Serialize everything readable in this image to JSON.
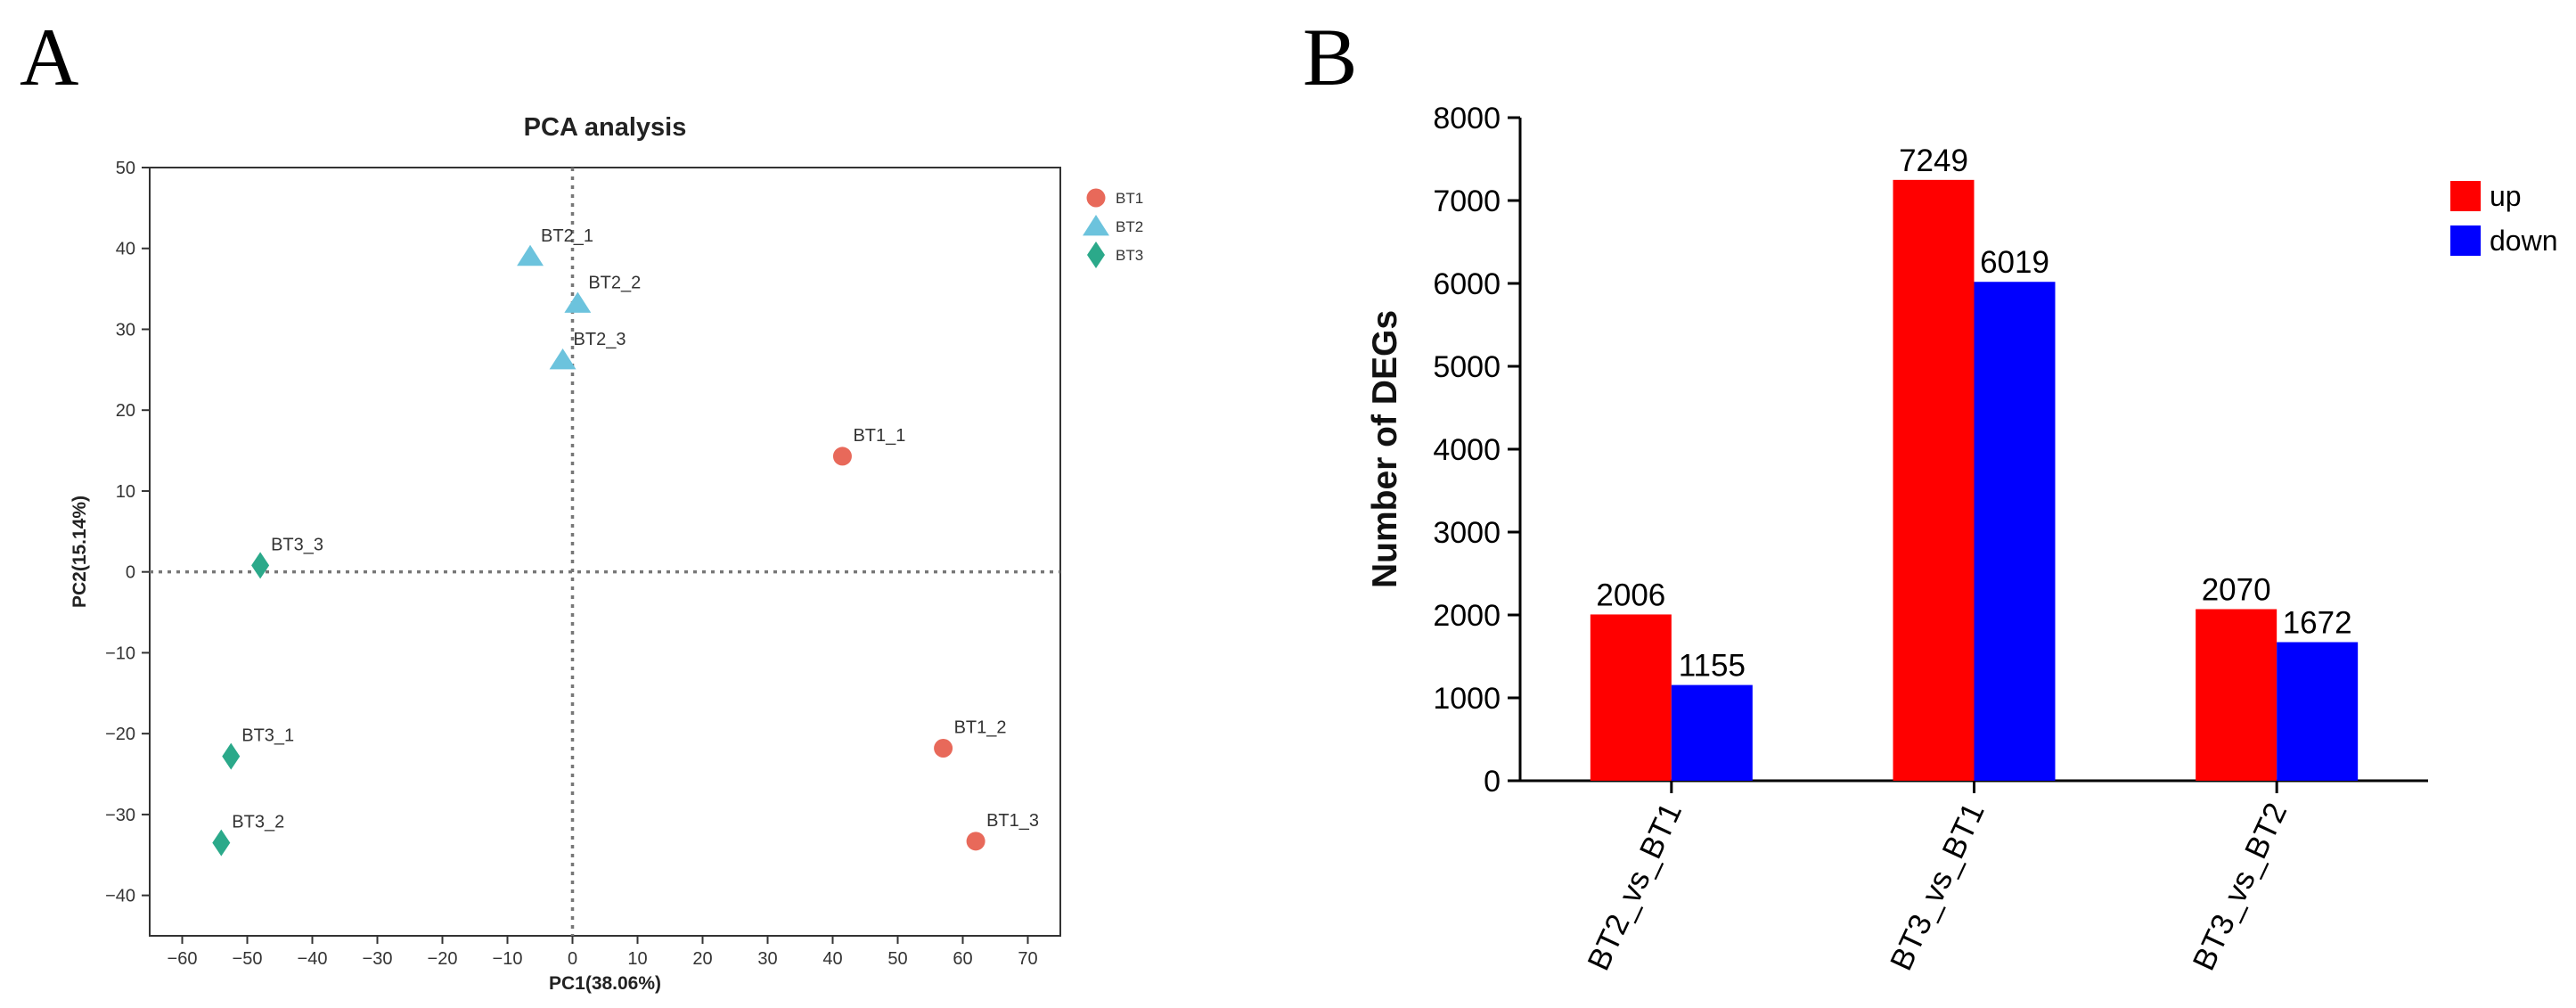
{
  "panel_labels": {
    "a": "A",
    "b": "B"
  },
  "chart_data": [
    {
      "type": "scatter",
      "title": "PCA analysis",
      "xlabel": "PC1(38.06%)",
      "ylabel": "PC2(15.14%)",
      "xlim": [
        -65,
        75
      ],
      "ylim": [
        -45,
        50
      ],
      "xticks": [
        -60,
        -50,
        -40,
        -30,
        -20,
        -10,
        0,
        10,
        20,
        30,
        40,
        50,
        60,
        70
      ],
      "xtick_labels": [
        "−60",
        "−50",
        "−40",
        "−30",
        "−20",
        "−10",
        "0",
        "10",
        "20",
        "30",
        "40",
        "50",
        "60",
        "70"
      ],
      "yticks": [
        -40,
        -30,
        -20,
        -10,
        0,
        10,
        20,
        30,
        40,
        50
      ],
      "ytick_labels": [
        "−40",
        "−30",
        "−20",
        "−10",
        "0",
        "10",
        "20",
        "30",
        "40",
        "50"
      ],
      "reference_lines": {
        "x": 0,
        "y": 0,
        "style": "dotted"
      },
      "legend": {
        "placement": "right-top"
      },
      "series": [
        {
          "name": "BT1",
          "marker": "circle",
          "color": "#e8695a",
          "points": [
            {
              "label": "BT1_1",
              "x": 41.5,
              "y": 14.3
            },
            {
              "label": "BT1_2",
              "x": 57.0,
              "y": -21.8
            },
            {
              "label": "BT1_3",
              "x": 62.0,
              "y": -33.3
            }
          ]
        },
        {
          "name": "BT2",
          "marker": "triangle",
          "color": "#6cc3dd",
          "points": [
            {
              "label": "BT2_1",
              "x": -6.5,
              "y": 39.0
            },
            {
              "label": "BT2_2",
              "x": 0.8,
              "y": 33.2
            },
            {
              "label": "BT2_3",
              "x": -1.5,
              "y": 26.2
            }
          ]
        },
        {
          "name": "BT3",
          "marker": "diamond",
          "color": "#2ba98a",
          "points": [
            {
              "label": "BT3_3",
              "x": -48.0,
              "y": 0.8
            },
            {
              "label": "BT3_1",
              "x": -52.5,
              "y": -22.8
            },
            {
              "label": "BT3_2",
              "x": -54.0,
              "y": -33.5
            }
          ]
        }
      ]
    },
    {
      "type": "bar",
      "title": "",
      "xlabel": "",
      "ylabel": "Number of DEGs",
      "ylim": [
        0,
        8000
      ],
      "yticks": [
        0,
        1000,
        2000,
        3000,
        4000,
        5000,
        6000,
        7000,
        8000
      ],
      "categories": [
        "BT2_vs_BT1",
        "BT3_vs_BT1",
        "BT3_vs_BT2"
      ],
      "legend": {
        "placement": "top-right"
      },
      "series": [
        {
          "name": "up",
          "color": "#ff0000",
          "values": [
            2006,
            7249,
            2070
          ]
        },
        {
          "name": "down",
          "color": "#0000ff",
          "values": [
            1155,
            6019,
            1672
          ]
        }
      ]
    }
  ]
}
